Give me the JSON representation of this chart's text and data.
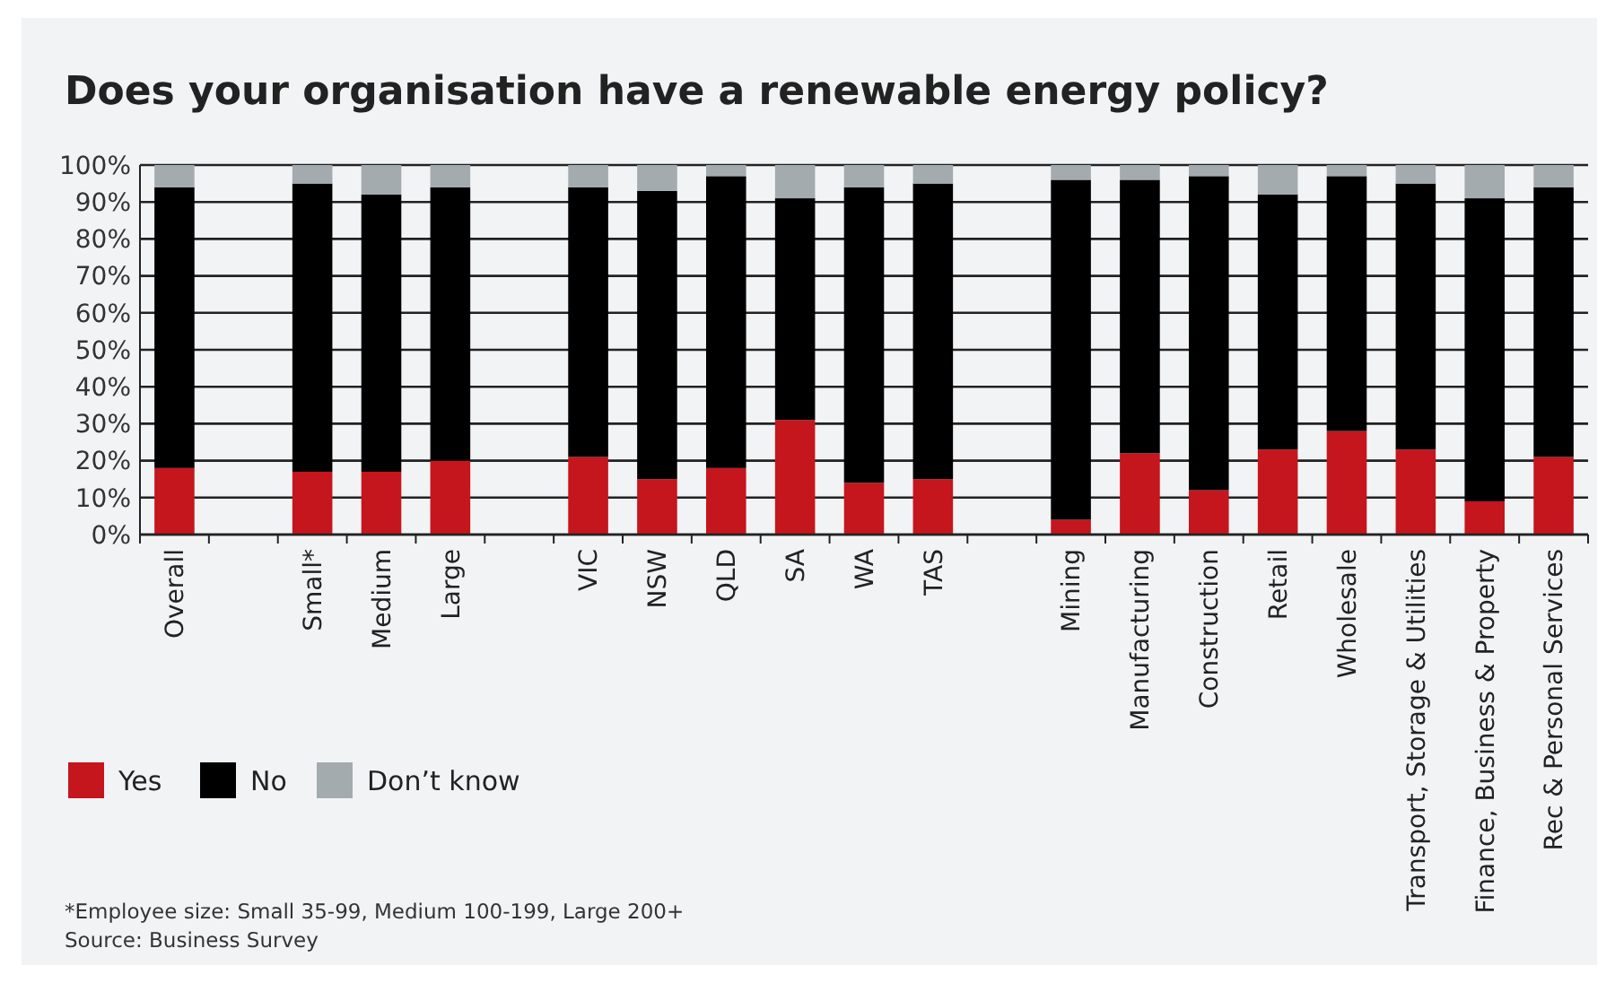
{
  "chart_data": {
    "type": "bar",
    "title": "Does your organisation have a renewable energy policy?",
    "categories": [
      "Overall",
      null,
      "Small*",
      "Medium",
      "Large",
      null,
      "VIC",
      "NSW",
      "QLD",
      "SA",
      "WA",
      "TAS",
      null,
      "Mining",
      "Manufacturing",
      "Construction",
      "Retail",
      "Wholesale",
      "Transport, Storage & Utilities",
      "Finance, Business & Property",
      "Rec & Personal Services"
    ],
    "stacked": true,
    "series": [
      {
        "name": "Yes",
        "color": "#c4161c",
        "values": [
          18,
          null,
          17,
          17,
          20,
          null,
          21,
          15,
          18,
          31,
          14,
          15,
          null,
          4,
          22,
          12,
          23,
          28,
          23,
          9,
          21
        ]
      },
      {
        "name": "No",
        "color": "#000000",
        "values": [
          76,
          null,
          78,
          75,
          74,
          null,
          73,
          78,
          79,
          60,
          80,
          80,
          null,
          92,
          74,
          85,
          69,
          69,
          72,
          82,
          73
        ]
      },
      {
        "name": "Don’t know",
        "color": "#a3abaf",
        "values": [
          6,
          null,
          5,
          8,
          6,
          null,
          6,
          7,
          3,
          9,
          6,
          5,
          null,
          4,
          4,
          3,
          8,
          3,
          5,
          9,
          6
        ]
      }
    ],
    "ylim": [
      0,
      100
    ],
    "yticks": [
      {
        "value": 0,
        "label": "0%"
      },
      {
        "value": 10,
        "label": "10%"
      },
      {
        "value": 20,
        "label": "20%"
      },
      {
        "value": 30,
        "label": "30%"
      },
      {
        "value": 40,
        "label": "40%"
      },
      {
        "value": 50,
        "label": "50%"
      },
      {
        "value": 60,
        "label": "60%"
      },
      {
        "value": 70,
        "label": "70%"
      },
      {
        "value": 80,
        "label": "80%"
      },
      {
        "value": 90,
        "label": "90%"
      },
      {
        "value": 100,
        "label": "100%"
      }
    ],
    "grid": "y",
    "legend": "bottom",
    "annotations": [
      "*Employee size: Small 35-99, Medium 100-199, Large 200+",
      "Source: Business Survey"
    ]
  }
}
